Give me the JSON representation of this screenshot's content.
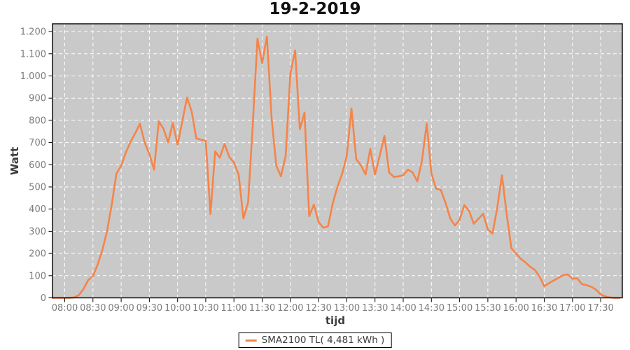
{
  "title": "19-2-2019",
  "chart_data": {
    "type": "line",
    "title": "19-2-2019",
    "xlabel": "tijd",
    "ylabel": "Watt",
    "grid": true,
    "legend_position": "bottom-center",
    "plot_background": "#c9c9c9",
    "grid_color": "#ffffff",
    "tick_label_color": "#7c7c7c",
    "x_domain_minutes": [
      467,
      1073
    ],
    "ylim": [
      0,
      1235
    ],
    "x_tick_labels": [
      "08:00",
      "08:30",
      "09:00",
      "09:30",
      "10:00",
      "10:30",
      "11:00",
      "11:30",
      "12:00",
      "12:30",
      "13:00",
      "13:30",
      "14:00",
      "14:30",
      "15:00",
      "15:30",
      "16:00",
      "16:30",
      "17:00",
      "17:30"
    ],
    "y_tick_values": [
      0,
      100,
      200,
      300,
      400,
      500,
      600,
      700,
      800,
      900,
      1000,
      1100,
      1200
    ],
    "y_tick_labels": [
      "0",
      "100",
      "200",
      "300",
      "400",
      "500",
      "600",
      "700",
      "800",
      "900",
      "1.000",
      "1.100",
      "1.200"
    ],
    "series": [
      {
        "name": "SMA2100 TL( 4,481 kWh )",
        "color": "#f58449",
        "points": [
          [
            "07:47",
            0
          ],
          [
            "07:50",
            0
          ],
          [
            "07:55",
            0
          ],
          [
            "08:00",
            0
          ],
          [
            "08:05",
            0
          ],
          [
            "08:10",
            2
          ],
          [
            "08:15",
            12
          ],
          [
            "08:20",
            40
          ],
          [
            "08:25",
            80
          ],
          [
            "08:30",
            98
          ],
          [
            "08:35",
            150
          ],
          [
            "08:40",
            215
          ],
          [
            "08:45",
            300
          ],
          [
            "08:50",
            420
          ],
          [
            "08:55",
            560
          ],
          [
            "09:00",
            595
          ],
          [
            "09:05",
            655
          ],
          [
            "09:10",
            703
          ],
          [
            "09:15",
            742
          ],
          [
            "09:20",
            785
          ],
          [
            "09:25",
            700
          ],
          [
            "09:30",
            648
          ],
          [
            "09:35",
            578
          ],
          [
            "09:40",
            795
          ],
          [
            "09:45",
            762
          ],
          [
            "09:50",
            700
          ],
          [
            "09:55",
            788
          ],
          [
            "10:00",
            690
          ],
          [
            "10:05",
            795
          ],
          [
            "10:10",
            903
          ],
          [
            "10:15",
            840
          ],
          [
            "10:20",
            718
          ],
          [
            "10:25",
            713
          ],
          [
            "10:30",
            708
          ],
          [
            "10:35",
            378
          ],
          [
            "10:40",
            660
          ],
          [
            "10:45",
            632
          ],
          [
            "10:50",
            694
          ],
          [
            "10:55",
            635
          ],
          [
            "11:00",
            610
          ],
          [
            "11:05",
            555
          ],
          [
            "11:10",
            358
          ],
          [
            "11:15",
            430
          ],
          [
            "11:20",
            780
          ],
          [
            "11:25",
            1168
          ],
          [
            "11:30",
            1058
          ],
          [
            "11:35",
            1178
          ],
          [
            "11:40",
            810
          ],
          [
            "11:45",
            595
          ],
          [
            "11:50",
            548
          ],
          [
            "11:55",
            640
          ],
          [
            "12:00",
            1010
          ],
          [
            "12:05",
            1115
          ],
          [
            "12:10",
            760
          ],
          [
            "12:15",
            835
          ],
          [
            "12:20",
            368
          ],
          [
            "12:25",
            420
          ],
          [
            "12:30",
            342
          ],
          [
            "12:35",
            316
          ],
          [
            "12:40",
            322
          ],
          [
            "12:45",
            425
          ],
          [
            "12:50",
            500
          ],
          [
            "12:55",
            558
          ],
          [
            "13:00",
            640
          ],
          [
            "13:05",
            853
          ],
          [
            "13:10",
            625
          ],
          [
            "13:15",
            597
          ],
          [
            "13:20",
            556
          ],
          [
            "13:25",
            672
          ],
          [
            "13:30",
            556
          ],
          [
            "13:35",
            640
          ],
          [
            "13:40",
            730
          ],
          [
            "13:45",
            565
          ],
          [
            "13:50",
            545
          ],
          [
            "13:55",
            548
          ],
          [
            "14:00",
            552
          ],
          [
            "14:05",
            578
          ],
          [
            "14:10",
            565
          ],
          [
            "14:15",
            525
          ],
          [
            "14:20",
            620
          ],
          [
            "14:25",
            786
          ],
          [
            "14:30",
            560
          ],
          [
            "14:35",
            492
          ],
          [
            "14:40",
            486
          ],
          [
            "14:45",
            428
          ],
          [
            "14:50",
            358
          ],
          [
            "14:55",
            326
          ],
          [
            "15:00",
            352
          ],
          [
            "15:05",
            418
          ],
          [
            "15:10",
            392
          ],
          [
            "15:15",
            334
          ],
          [
            "15:20",
            356
          ],
          [
            "15:25",
            379
          ],
          [
            "15:30",
            308
          ],
          [
            "15:35",
            290
          ],
          [
            "15:40",
            405
          ],
          [
            "15:45",
            552
          ],
          [
            "15:50",
            378
          ],
          [
            "15:55",
            224
          ],
          [
            "16:00",
            200
          ],
          [
            "16:05",
            176
          ],
          [
            "16:10",
            160
          ],
          [
            "16:15",
            140
          ],
          [
            "16:20",
            126
          ],
          [
            "16:25",
            96
          ],
          [
            "16:30",
            52
          ],
          [
            "16:35",
            66
          ],
          [
            "16:40",
            78
          ],
          [
            "16:45",
            90
          ],
          [
            "16:50",
            102
          ],
          [
            "16:55",
            106
          ],
          [
            "17:00",
            86
          ],
          [
            "17:05",
            88
          ],
          [
            "17:10",
            62
          ],
          [
            "17:15",
            57
          ],
          [
            "17:20",
            50
          ],
          [
            "17:25",
            37
          ],
          [
            "17:30",
            15
          ],
          [
            "17:35",
            6
          ],
          [
            "17:40",
            2
          ],
          [
            "17:45",
            0
          ],
          [
            "17:50",
            0
          ]
        ]
      }
    ]
  },
  "legend": {
    "label": "SMA2100 TL( 4,481 kWh )"
  }
}
